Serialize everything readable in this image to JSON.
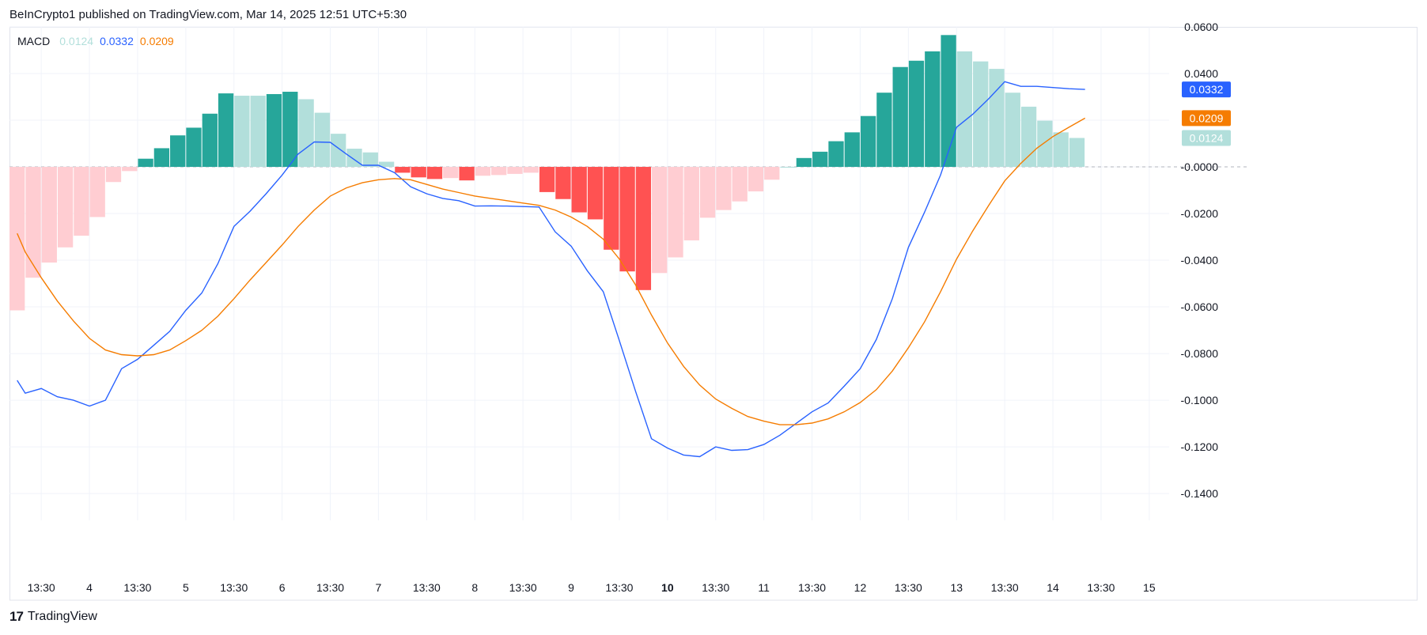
{
  "header": {
    "attribution": "BeInCrypto1 published on TradingView.com, Mar 14, 2025 12:51 UTC+5:30"
  },
  "legend": {
    "name": "MACD",
    "histogram_value": "0.0124",
    "macd_value": "0.0332",
    "signal_value": "0.0209"
  },
  "footer": {
    "logo_mark": "17",
    "logo_text": "TradingView"
  },
  "colors": {
    "macd_line": "#2962ff",
    "signal_line": "#f57c00",
    "hist_up_strong": "#26a69a",
    "hist_up_weak": "#b2dfdb",
    "hist_down_strong": "#ff5252",
    "hist_down_weak": "#ffcdd2"
  },
  "chart_data": {
    "type": "bar",
    "indicator": "MACD",
    "ylim": [
      -0.142,
      0.06
    ],
    "y_ticks": [
      "0.0600",
      "0.0400",
      "0.0200",
      "-0.0000",
      "-0.0200",
      "-0.0400",
      "-0.0600",
      "-0.0800",
      "-0.1000",
      "-0.1200",
      "-0.1400"
    ],
    "y_tick_values": [
      0.06,
      0.04,
      0.02,
      0,
      -0.02,
      -0.04,
      -0.06,
      -0.08,
      -0.1,
      -0.12,
      -0.14
    ],
    "x_ticks": [
      {
        "label": "13:30",
        "index": 1.5,
        "bold": false
      },
      {
        "label": "4",
        "index": 4.5,
        "bold": false
      },
      {
        "label": "13:30",
        "index": 7.5,
        "bold": false
      },
      {
        "label": "5",
        "index": 10.5,
        "bold": false
      },
      {
        "label": "13:30",
        "index": 13.5,
        "bold": false
      },
      {
        "label": "6",
        "index": 16.5,
        "bold": false
      },
      {
        "label": "13:30",
        "index": 19.5,
        "bold": false
      },
      {
        "label": "7",
        "index": 22.5,
        "bold": false
      },
      {
        "label": "13:30",
        "index": 25.5,
        "bold": false
      },
      {
        "label": "8",
        "index": 28.5,
        "bold": false
      },
      {
        "label": "13:30",
        "index": 31.5,
        "bold": false
      },
      {
        "label": "9",
        "index": 34.5,
        "bold": false
      },
      {
        "label": "13:30",
        "index": 37.5,
        "bold": false
      },
      {
        "label": "10",
        "index": 40.5,
        "bold": true
      },
      {
        "label": "13:30",
        "index": 43.5,
        "bold": false
      },
      {
        "label": "11",
        "index": 46.5,
        "bold": false
      },
      {
        "label": "13:30",
        "index": 49.5,
        "bold": false
      },
      {
        "label": "12",
        "index": 52.5,
        "bold": false
      },
      {
        "label": "13:30",
        "index": 55.5,
        "bold": false
      },
      {
        "label": "13",
        "index": 58.5,
        "bold": false
      },
      {
        "label": "13:30",
        "index": 61.5,
        "bold": false
      },
      {
        "label": "14",
        "index": 64.5,
        "bold": false
      },
      {
        "label": "13:30",
        "index": 67.5,
        "bold": false
      },
      {
        "label": "15",
        "index": 70.5,
        "bold": false
      }
    ],
    "histogram": [
      -0.0615,
      -0.0475,
      -0.041,
      -0.0345,
      -0.0295,
      -0.0215,
      -0.0065,
      -0.0018,
      0.0035,
      0.008,
      0.0135,
      0.0168,
      0.0228,
      0.0315,
      0.0305,
      0.0305,
      0.0312,
      0.0322,
      0.029,
      0.0232,
      0.0142,
      0.0078,
      0.0062,
      0.0022,
      -0.0025,
      -0.0045,
      -0.0052,
      -0.0048,
      -0.0058,
      -0.0038,
      -0.0035,
      -0.003,
      -0.0025,
      -0.0108,
      -0.0138,
      -0.0195,
      -0.0225,
      -0.0355,
      -0.0448,
      -0.0528,
      -0.0455,
      -0.0388,
      -0.0315,
      -0.0218,
      -0.0185,
      -0.0148,
      -0.0105,
      -0.0055,
      0.0,
      0.0038,
      0.0065,
      0.011,
      0.0148,
      0.0218,
      0.0318,
      0.0428,
      0.0455,
      0.0495,
      0.0565,
      0.0495,
      0.0452,
      0.042,
      0.0318,
      0.0258,
      0.0198,
      0.0148,
      0.0124
    ],
    "histogram_strength": [
      "weak",
      "weak",
      "weak",
      "weak",
      "weak",
      "weak",
      "weak",
      "weak",
      "strong",
      "strong",
      "strong",
      "strong",
      "strong",
      "strong",
      "weak",
      "weak",
      "strong",
      "strong",
      "weak",
      "weak",
      "weak",
      "weak",
      "weak",
      "weak",
      "strong",
      "strong",
      "strong",
      "weak",
      "strong",
      "weak",
      "weak",
      "weak",
      "weak",
      "strong",
      "strong",
      "strong",
      "strong",
      "strong",
      "strong",
      "strong",
      "weak",
      "weak",
      "weak",
      "weak",
      "weak",
      "weak",
      "weak",
      "weak",
      "weak",
      "strong",
      "strong",
      "strong",
      "strong",
      "strong",
      "strong",
      "strong",
      "strong",
      "strong",
      "strong",
      "weak",
      "weak",
      "weak",
      "weak",
      "weak",
      "weak",
      "weak",
      "weak"
    ],
    "series": [
      {
        "key": "macd",
        "x": [
          0,
          0.5,
          1.5,
          2.5,
          3.5,
          4.5,
          5.5,
          6.5,
          7.5,
          8.5,
          9.5,
          10.5,
          11.5,
          12.5,
          13.5,
          14.5,
          15.5,
          16.5,
          17.5,
          18.5,
          19.5,
          20.5,
          21.5,
          22.5,
          23.5,
          24.5,
          25.5,
          26.5,
          27.5,
          28.5,
          29.5,
          30.5,
          31.5,
          32.5,
          33.5,
          34.5,
          35.5,
          36.5,
          37.5,
          38.5,
          39.5,
          40.5,
          41.5,
          42.5,
          43.5,
          44.5,
          45.5,
          46.5,
          47.5,
          48.5,
          49.5,
          50.5,
          51.5,
          52.5,
          53.5,
          54.5,
          55.5,
          56.5,
          57.5,
          58.5,
          59.5,
          60.5,
          61.5,
          62.5,
          63.5,
          64.5,
          65.5,
          66.5
        ],
        "values": [
          -0.0915,
          -0.097,
          -0.095,
          -0.0985,
          -0.1,
          -0.1025,
          -0.1,
          -0.0865,
          -0.0825,
          -0.0765,
          -0.0705,
          -0.0615,
          -0.054,
          -0.0415,
          -0.0255,
          -0.019,
          -0.0115,
          -0.0035,
          0.0055,
          0.0107,
          0.0105,
          0.0055,
          0.0007,
          0.0007,
          -0.0025,
          -0.0085,
          -0.0115,
          -0.0135,
          -0.0145,
          -0.0168,
          -0.0167,
          -0.0168,
          -0.017,
          -0.0172,
          -0.0278,
          -0.034,
          -0.0445,
          -0.0535,
          -0.0745,
          -0.096,
          -0.1165,
          -0.1205,
          -0.1235,
          -0.1242,
          -0.12,
          -0.1215,
          -0.1212,
          -0.119,
          -0.115,
          -0.11,
          -0.105,
          -0.1012,
          -0.094,
          -0.0865,
          -0.074,
          -0.0565,
          -0.0345,
          -0.0195,
          -0.0035,
          0.017,
          0.0225,
          0.0292,
          0.0365,
          0.0345,
          0.0345,
          0.034,
          0.0335,
          0.0332
        ]
      },
      {
        "key": "signal",
        "x": [
          0,
          0.5,
          1.5,
          2.5,
          3.5,
          4.5,
          5.5,
          6.5,
          7.5,
          8.5,
          9.5,
          10.5,
          11.5,
          12.5,
          13.5,
          14.5,
          15.5,
          16.5,
          17.5,
          18.5,
          19.5,
          20.5,
          21.5,
          22.5,
          23.5,
          24.5,
          25.5,
          26.5,
          27.5,
          28.5,
          29.5,
          30.5,
          31.5,
          32.5,
          33.5,
          34.5,
          35.5,
          36.5,
          37.5,
          38.5,
          39.5,
          40.5,
          41.5,
          42.5,
          43.5,
          44.5,
          45.5,
          46.5,
          47.5,
          48.5,
          49.5,
          50.5,
          51.5,
          52.5,
          53.5,
          54.5,
          55.5,
          56.5,
          57.5,
          58.5,
          59.5,
          60.5,
          61.5,
          62.5,
          63.5,
          64.5,
          65.5,
          66.5
        ],
        "values": [
          -0.0285,
          -0.0365,
          -0.0475,
          -0.0575,
          -0.066,
          -0.0735,
          -0.0785,
          -0.0805,
          -0.081,
          -0.0805,
          -0.0785,
          -0.0745,
          -0.07,
          -0.064,
          -0.0565,
          -0.0485,
          -0.041,
          -0.0335,
          -0.0255,
          -0.0185,
          -0.0125,
          -0.009,
          -0.0068,
          -0.0055,
          -0.005,
          -0.0055,
          -0.0075,
          -0.0095,
          -0.011,
          -0.0125,
          -0.0135,
          -0.0145,
          -0.0155,
          -0.0165,
          -0.0185,
          -0.0215,
          -0.0255,
          -0.031,
          -0.0395,
          -0.0505,
          -0.0635,
          -0.0755,
          -0.0855,
          -0.0935,
          -0.0995,
          -0.1035,
          -0.107,
          -0.109,
          -0.1105,
          -0.1105,
          -0.1098,
          -0.108,
          -0.105,
          -0.101,
          -0.0955,
          -0.0875,
          -0.0775,
          -0.0665,
          -0.0535,
          -0.0395,
          -0.0275,
          -0.0165,
          -0.006,
          0.0015,
          0.008,
          0.013,
          0.017,
          0.0209
        ]
      }
    ],
    "price_tags": [
      {
        "key": "macd",
        "label": "0.0332",
        "value": 0.0332
      },
      {
        "key": "signal",
        "label": "0.0209",
        "value": 0.0209
      },
      {
        "key": "hist",
        "label": "0.0124",
        "value": 0.0124
      }
    ],
    "zero_line": "dashed",
    "grid": true,
    "legend_position": "top-left"
  }
}
